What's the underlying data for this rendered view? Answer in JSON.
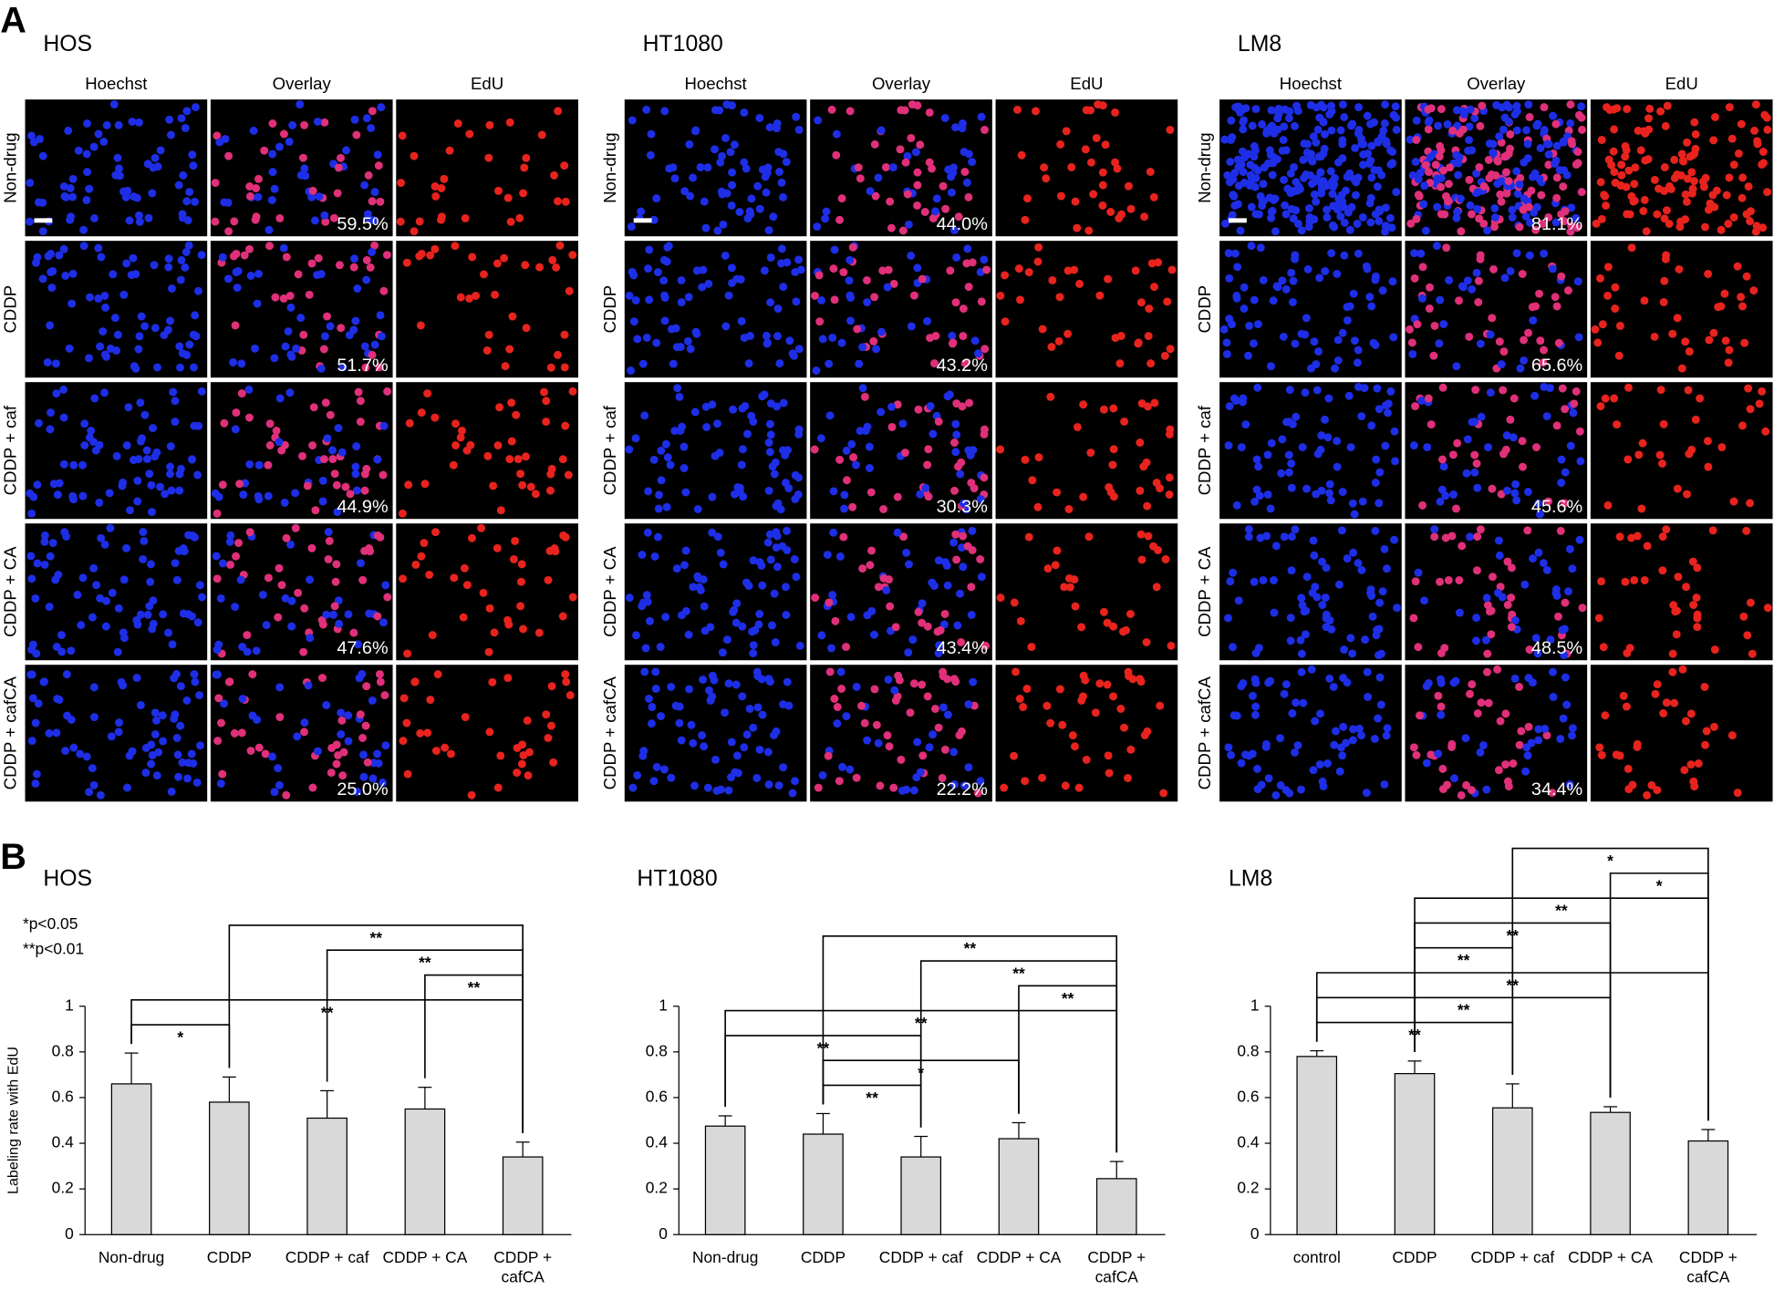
{
  "panel_labels": [
    "A",
    "B"
  ],
  "panel_a": {
    "columns": [
      "Hoechst",
      "Overlay",
      "EdU"
    ],
    "cell_lines": [
      {
        "name": "HOS",
        "rows": [
          "Non-drug",
          "CDDP",
          "CDDP + caf",
          "CDDP + CA",
          "CDDP + cafCA"
        ],
        "percentages": [
          "59.5%",
          "51.7%",
          "44.9%",
          "47.6%",
          "25.0%"
        ]
      },
      {
        "name": "HT1080",
        "rows": [
          "Non-drug",
          "CDDP",
          "CDDP + caf",
          "CDDP + CA",
          "CDDP + cafCA"
        ],
        "percentages": [
          "44.0%",
          "43.2%",
          "30.3%",
          "43.4%",
          "22.2%"
        ]
      },
      {
        "name": "LM8",
        "rows": [
          "Non-drug",
          "CDDP",
          "CDDP + caf",
          "CDDP + CA",
          "CDDP + cafCA"
        ],
        "percentages": [
          "81.1%",
          "65.6%",
          "45.6%",
          "48.5%",
          "34.4%"
        ]
      }
    ]
  },
  "chart_data": [
    {
      "type": "bar",
      "title": "HOS",
      "y_label": "Labeling rate with EdU",
      "annotations": [
        "*p<0.05",
        "**p<0.01"
      ],
      "categories": [
        "Non-drug",
        "CDDP",
        "CDDP + caf",
        "CDDP + CA",
        "CDDP + cafCA"
      ],
      "values": [
        0.66,
        0.58,
        0.51,
        0.55,
        0.34
      ],
      "errors": [
        0.135,
        0.11,
        0.12,
        0.095,
        0.065
      ],
      "color": "#d9d9d9",
      "ylim": [
        0,
        1
      ],
      "yticks": [
        0,
        0.2,
        0.4,
        0.6,
        0.8,
        1
      ],
      "significance": [
        {
          "from": 0,
          "to": 1,
          "label": "*"
        },
        {
          "from": 0,
          "to": 4,
          "label": "**"
        },
        {
          "from": 3,
          "to": 4,
          "label": "**"
        },
        {
          "from": 2,
          "to": 4,
          "label": "**"
        },
        {
          "from": 1,
          "to": 4,
          "label": "**"
        }
      ]
    },
    {
      "type": "bar",
      "title": "HT1080",
      "categories": [
        "Non-drug",
        "CDDP",
        "CDDP + caf",
        "CDDP + CA",
        "CDDP + cafCA"
      ],
      "values": [
        0.475,
        0.44,
        0.34,
        0.42,
        0.245
      ],
      "errors": [
        0.045,
        0.09,
        0.09,
        0.07,
        0.075
      ],
      "color": "#d9d9d9",
      "ylim": [
        0,
        1
      ],
      "yticks": [
        0,
        0.2,
        0.4,
        0.6,
        0.8,
        1
      ],
      "significance": [
        {
          "from": 1,
          "to": 2,
          "label": "**"
        },
        {
          "from": 1,
          "to": 3,
          "label": "*"
        },
        {
          "from": 0,
          "to": 2,
          "label": "**"
        },
        {
          "from": 0,
          "to": 4,
          "label": "**"
        },
        {
          "from": 3,
          "to": 4,
          "label": "**"
        },
        {
          "from": 2,
          "to": 4,
          "label": "**"
        },
        {
          "from": 1,
          "to": 4,
          "label": "**"
        }
      ]
    },
    {
      "type": "bar",
      "title": "LM8",
      "categories": [
        "control",
        "CDDP",
        "CDDP + caf",
        "CDDP + CA",
        "CDDP + cafCA"
      ],
      "values": [
        0.78,
        0.705,
        0.555,
        0.535,
        0.41
      ],
      "errors": [
        0.025,
        0.055,
        0.105,
        0.025,
        0.05
      ],
      "color": "#d9d9d9",
      "ylim": [
        0,
        1
      ],
      "yticks": [
        0,
        0.2,
        0.4,
        0.6,
        0.8,
        1
      ],
      "significance": [
        {
          "from": 0,
          "to": 2,
          "label": "**"
        },
        {
          "from": 0,
          "to": 3,
          "label": "**"
        },
        {
          "from": 0,
          "to": 4,
          "label": "**"
        },
        {
          "from": 1,
          "to": 2,
          "label": "**"
        },
        {
          "from": 1,
          "to": 3,
          "label": "**"
        },
        {
          "from": 1,
          "to": 4,
          "label": "**"
        },
        {
          "from": 3,
          "to": 4,
          "label": "*"
        },
        {
          "from": 2,
          "to": 4,
          "label": "*"
        }
      ]
    }
  ]
}
